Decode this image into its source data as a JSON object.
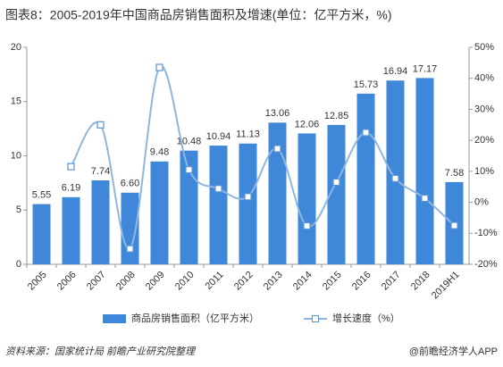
{
  "chart_data": {
    "type": "bar",
    "title": "图表8：2005-2019年中国商品房销售面积及增速(单位：亿平方米，%)",
    "categories": [
      "2005",
      "2006",
      "2007",
      "2008",
      "2009",
      "2010",
      "2011",
      "2012",
      "2013",
      "2014",
      "2015",
      "2016",
      "2017",
      "2018",
      "2019H1"
    ],
    "series": [
      {
        "name": "商品房销售面积（亿平方米）",
        "color": "#3f87d9",
        "type": "bar",
        "values": [
          5.55,
          6.19,
          7.74,
          6.6,
          9.48,
          10.48,
          10.94,
          11.13,
          13.06,
          12.06,
          12.85,
          15.73,
          16.94,
          17.17,
          7.58
        ],
        "value_labels": [
          "5.55",
          "6.19",
          "7.74",
          "6.60",
          "9.48",
          "10.48",
          "10.94",
          "11.13",
          "13.06",
          "12.06",
          "12.85",
          "15.73",
          "16.94",
          "17.17",
          "7.58"
        ]
      },
      {
        "name": "增长速度（%）",
        "color": "#8fb6e0",
        "type": "line",
        "axis": "y2",
        "values": [
          null,
          11.5,
          25,
          -15,
          43.5,
          10.5,
          4.4,
          1.8,
          17.3,
          -7.6,
          6.5,
          22.5,
          7.7,
          1.3,
          -7.5
        ]
      }
    ],
    "ylim": [
      0,
      20
    ],
    "yticks": [
      0,
      5,
      10,
      15,
      20
    ],
    "y2lim": [
      -20,
      50
    ],
    "y2ticks": [
      {
        "value": -20,
        "label": "-20%"
      },
      {
        "value": -10,
        "label": "-10%"
      },
      {
        "value": 0,
        "label": "0%"
      },
      {
        "value": 10,
        "label": "10%"
      },
      {
        "value": 20,
        "label": "20%"
      },
      {
        "value": 30,
        "label": "30%"
      },
      {
        "value": 40,
        "label": "40%"
      },
      {
        "value": 50,
        "label": "50%"
      }
    ],
    "legend": "bottom",
    "source": "资料来源：国家统计局 前瞻产业研究院整理",
    "credit": "@前瞻经济学人APP"
  }
}
